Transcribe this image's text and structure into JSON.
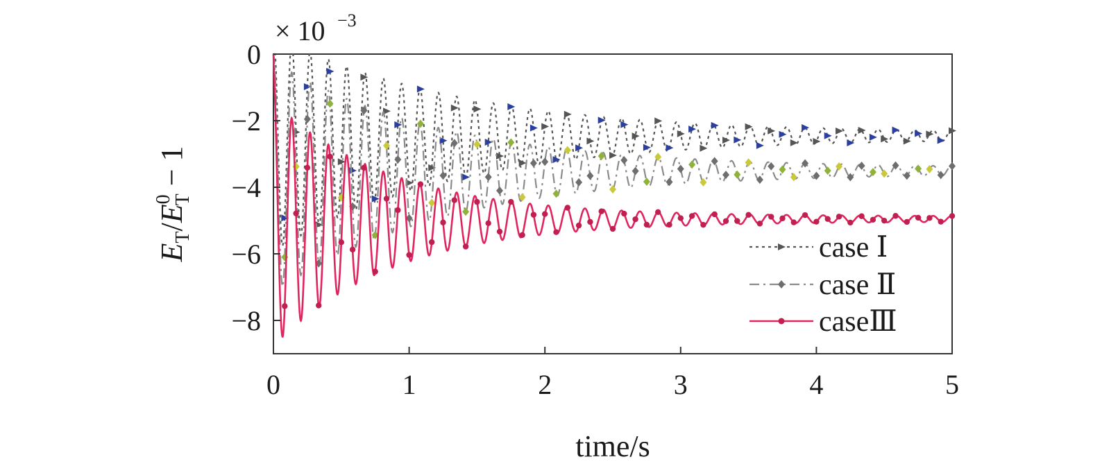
{
  "chart_data": {
    "type": "line",
    "title": "",
    "xlabel": "time/s",
    "ylabel": "E_T/E_T^0 − 1",
    "ylabel_parts": {
      "main": "E",
      "sub": "T",
      "slash": "/",
      "main2": "E",
      "sub2": "T",
      "sup2": "0",
      "tail": " − 1"
    },
    "y_multiplier": "× 10",
    "y_multiplier_exponent": "−3",
    "xlim": [
      0,
      5
    ],
    "ylim": [
      -9,
      0
    ],
    "x_ticks": [
      0,
      1,
      2,
      3,
      4,
      5
    ],
    "x_tick_labels": [
      "0",
      "1",
      "2",
      "3",
      "4",
      "5"
    ],
    "y_ticks": [
      0,
      -2,
      -4,
      -6,
      -8
    ],
    "y_tick_labels": [
      "0",
      "−2",
      "−4",
      "−6",
      "−8"
    ],
    "grid": false,
    "legend": "bottom-right",
    "series": [
      {
        "name": "case Ⅰ",
        "style": "dotted",
        "color": "#555555",
        "marker_colors": [
          "#555555",
          "#2b3f9e",
          "#555555",
          "#2b3f9e"
        ],
        "final": -2.45,
        "amp0": 3.2,
        "decay": 0.75,
        "drift": 0.2,
        "period": 0.135
      },
      {
        "name": "case Ⅱ",
        "style": "dashdot",
        "color": "#8a8a8a",
        "marker_colors": [
          "#6e6e6e",
          "#8fb33a",
          "#c9c93a",
          "#6e6e6e"
        ],
        "final": -3.5,
        "amp0": 3.4,
        "decay": 0.8,
        "drift": 0.2,
        "period": 0.135
      },
      {
        "name": "caseⅢ",
        "style": "solid",
        "color": "#e0245e",
        "marker_colors": [
          "#c01f50"
        ],
        "final": -4.95,
        "amp0": 3.6,
        "decay": 1.15,
        "drift": 0.15,
        "period": 0.135
      }
    ]
  }
}
